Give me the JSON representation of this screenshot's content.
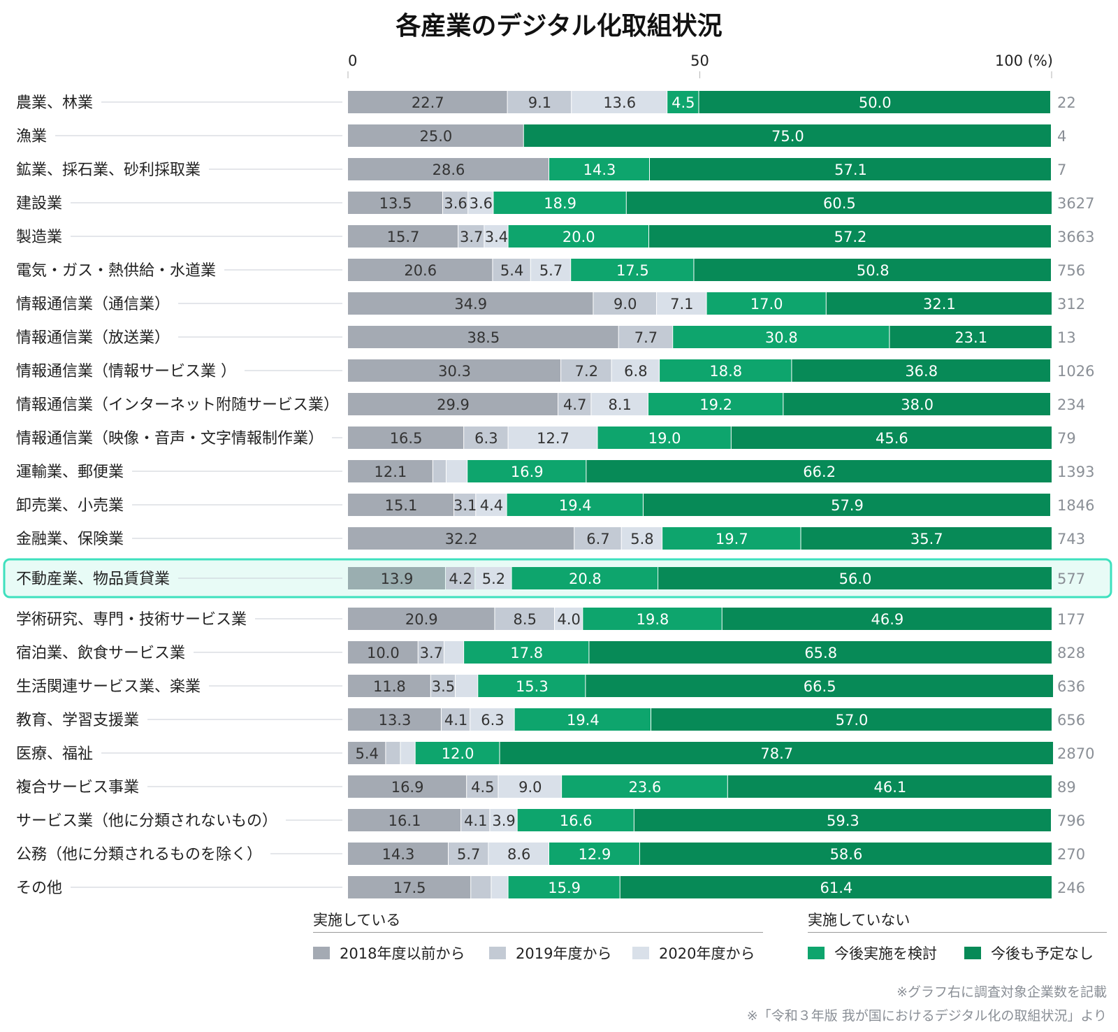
{
  "chart_data": {
    "type": "bar",
    "orientation": "horizontal",
    "stacked": true,
    "title": "各産業のデジタル化取組状況",
    "xlim": [
      0,
      100
    ],
    "x_ticks": [
      {
        "value": 0,
        "label": "0"
      },
      {
        "value": 50,
        "label": "50"
      },
      {
        "value": 100,
        "label": "100 (%)"
      }
    ],
    "series_names": [
      "2018年度以前から",
      "2019年度から",
      "2020年度から",
      "今後実施を検討",
      "今後も予定なし"
    ],
    "colors": [
      "#a4aab3",
      "#c3cad4",
      "#d9e0e9",
      "#0ea56d",
      "#078a57"
    ],
    "highlight_color": "#3ee0be",
    "rows": [
      {
        "label": "農業、林業",
        "values": [
          22.7,
          9.1,
          13.6,
          4.5,
          50.0
        ],
        "count": "22"
      },
      {
        "label": "漁業",
        "values": [
          25.0,
          0,
          0,
          0,
          75.0
        ],
        "count": "4"
      },
      {
        "label": "鉱業、採石業、砂利採取業",
        "values": [
          28.6,
          0,
          0,
          14.3,
          57.1
        ],
        "count": "7"
      },
      {
        "label": "建設業",
        "values": [
          13.5,
          3.6,
          3.6,
          18.9,
          60.5
        ],
        "count": "3627"
      },
      {
        "label": "製造業",
        "values": [
          15.7,
          3.7,
          3.4,
          20.0,
          57.2
        ],
        "count": "3663"
      },
      {
        "label": "電気・ガス・熱供給・水道業",
        "values": [
          20.6,
          5.4,
          5.7,
          17.5,
          50.8
        ],
        "count": "756"
      },
      {
        "label": "情報通信業（通信業）",
        "values": [
          34.9,
          9.0,
          7.1,
          17.0,
          32.1
        ],
        "count": "312"
      },
      {
        "label": "情報通信業（放送業）",
        "values": [
          38.5,
          7.7,
          0,
          30.8,
          23.1
        ],
        "count": "13"
      },
      {
        "label": "情報通信業（情報サービス業 ）",
        "values": [
          30.3,
          7.2,
          6.8,
          18.8,
          36.8
        ],
        "count": "1026"
      },
      {
        "label": "情報通信業（インターネット附随サービス業）",
        "values": [
          29.9,
          4.7,
          8.1,
          19.2,
          38.0
        ],
        "count": "234"
      },
      {
        "label": "情報通信業（映像・音声・文字情報制作業）",
        "values": [
          16.5,
          6.3,
          12.7,
          19.0,
          45.6
        ],
        "count": "79"
      },
      {
        "label": "運輸業、郵便業",
        "values": [
          12.1,
          1.9,
          3.0,
          16.9,
          66.2
        ],
        "show": [
          true,
          false,
          false,
          true,
          true
        ],
        "count": "1393"
      },
      {
        "label": "卸売業、小売業",
        "values": [
          15.1,
          3.1,
          4.4,
          19.4,
          57.9
        ],
        "count": "1846"
      },
      {
        "label": "金融業、保険業",
        "values": [
          32.2,
          6.7,
          5.8,
          19.7,
          35.7
        ],
        "count": "743"
      },
      {
        "label": "不動産業、物品賃貸業",
        "values": [
          13.9,
          4.2,
          5.2,
          20.8,
          56.0
        ],
        "count": "577",
        "highlight": true
      },
      {
        "label": "学術研究、専門・技術サービス業",
        "values": [
          20.9,
          8.5,
          4.0,
          19.8,
          46.9
        ],
        "count": "177"
      },
      {
        "label": "宿泊業、飲食サービス業",
        "values": [
          10.0,
          3.7,
          2.8,
          17.8,
          65.8
        ],
        "show": [
          true,
          true,
          false,
          true,
          true
        ],
        "count": "828"
      },
      {
        "label": "生活関連サービス業、楽業",
        "values": [
          11.8,
          3.5,
          3.2,
          15.3,
          66.5
        ],
        "show": [
          true,
          true,
          false,
          true,
          true
        ],
        "count": "636"
      },
      {
        "label": "教育、学習支援業",
        "values": [
          13.3,
          4.1,
          6.3,
          19.4,
          57.0
        ],
        "count": "656"
      },
      {
        "label": "医療、福祉",
        "values": [
          5.4,
          2.1,
          2.1,
          12.0,
          78.7
        ],
        "show": [
          true,
          false,
          false,
          true,
          true
        ],
        "count": "2870"
      },
      {
        "label": "複合サービス事業",
        "values": [
          16.9,
          4.5,
          9.0,
          23.6,
          46.1
        ],
        "count": "89"
      },
      {
        "label": "サービス業（他に分類されないもの）",
        "values": [
          16.1,
          4.1,
          3.9,
          16.6,
          59.3
        ],
        "count": "796"
      },
      {
        "label": "公務（他に分類されるものを除く）",
        "values": [
          14.3,
          5.7,
          8.6,
          12.9,
          58.6
        ],
        "count": "270"
      },
      {
        "label": "その他",
        "values": [
          17.5,
          2.9,
          2.4,
          15.9,
          61.4
        ],
        "show": [
          true,
          false,
          false,
          true,
          true
        ],
        "count": "246"
      }
    ]
  },
  "legend": {
    "group_done": "実施している",
    "group_not_done": "実施していない",
    "items": [
      "2018年度以前から",
      "2019年度から",
      "2020年度から",
      "今後実施を検討",
      "今後も予定なし"
    ]
  },
  "notes": {
    "note1": "※グラフ右に調査対象企業数を記載",
    "note2": "※「令和３年版 我が国におけるデジタル化の取組状況」より"
  }
}
